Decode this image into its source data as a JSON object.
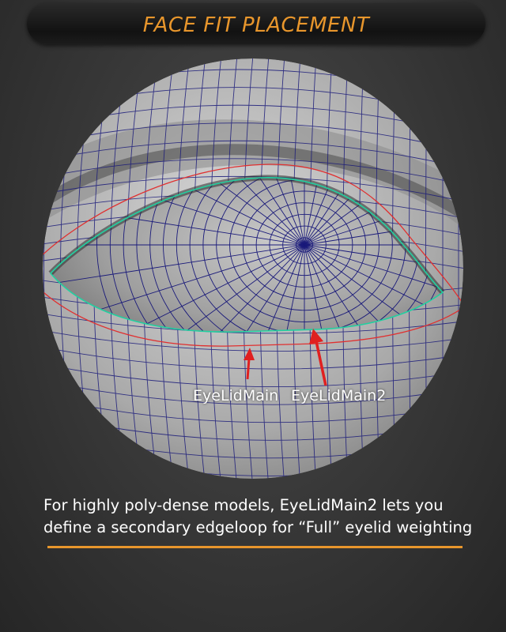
{
  "header": {
    "title": "FACE FIT PLACEMENT"
  },
  "viewport": {
    "labels": {
      "primary": "EyeLidMain",
      "secondary": "EyeLidMain2"
    }
  },
  "caption": {
    "line1": "For highly poly-dense models, EyeLidMain2 lets you",
    "line2": "define a secondary edgeloop for “Full” eyelid weighting"
  },
  "colors": {
    "accent": "#e8962c",
    "mesh_wire": "#1a1a7a",
    "edgeloop_primary": "#22d0a0",
    "edgeloop_secondary": "#e03030",
    "arrow": "#e02020"
  }
}
